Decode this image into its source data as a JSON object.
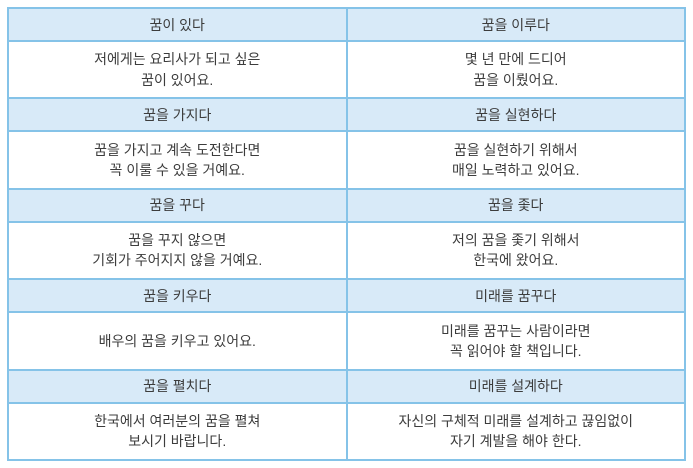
{
  "colors": {
    "border": "#85c3e8",
    "header_bg": "#d8eaf8",
    "body_bg": "#ffffff",
    "text": "#3c3c3c"
  },
  "table": {
    "rows": [
      {
        "left": {
          "term": "꿈이 있다",
          "example": [
            "저에게는 요리사가 되고 싶은",
            "꿈이 있어요."
          ]
        },
        "right": {
          "term": "꿈을 이루다",
          "example": [
            "몇 년 만에 드디어",
            "꿈을 이뤘어요."
          ]
        }
      },
      {
        "left": {
          "term": "꿈을 가지다",
          "example": [
            "꿈을 가지고 계속 도전한다면",
            "꼭 이룰 수 있을 거예요."
          ]
        },
        "right": {
          "term": "꿈을 실현하다",
          "example": [
            "꿈을 실현하기 위해서",
            "매일 노력하고 있어요."
          ]
        }
      },
      {
        "left": {
          "term": "꿈을 꾸다",
          "example": [
            "꿈을 꾸지 않으면",
            "기회가 주어지지 않을 거예요."
          ]
        },
        "right": {
          "term": "꿈을 좇다",
          "example": [
            "저의 꿈을 좇기 위해서",
            "한국에 왔어요."
          ]
        }
      },
      {
        "left": {
          "term": "꿈을 키우다",
          "example": [
            "배우의 꿈을 키우고 있어요."
          ]
        },
        "right": {
          "term": "미래를 꿈꾸다",
          "example": [
            "미래를 꿈꾸는 사람이라면",
            "꼭 읽어야 할 책입니다."
          ]
        }
      },
      {
        "left": {
          "term": "꿈을 펼치다",
          "example": [
            "한국에서 여러분의 꿈을 펼쳐",
            "보시기 바랍니다."
          ]
        },
        "right": {
          "term": "미래를 설계하다",
          "example": [
            "자신의 구체적 미래를 설계하고 끊임없이",
            "자기 계발을 해야 한다."
          ]
        }
      }
    ]
  }
}
